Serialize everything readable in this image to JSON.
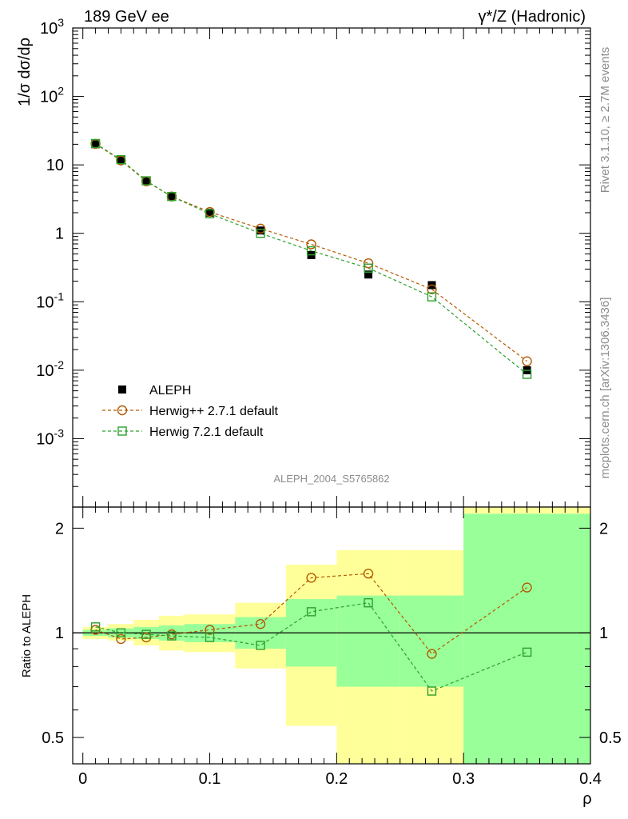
{
  "header": {
    "left_label": "189 GeV ee",
    "right_label": "γ*/Z (Hadronic)",
    "side_label_top": "Rivet 3.1.10, ≥ 2.7M events",
    "side_label_bottom": "mcplots.cern.ch [arXiv:1306.3436]",
    "analysis_id": "ALEPH_2004_S5765862"
  },
  "chart_data": [
    {
      "type": "scatter",
      "panel": "main",
      "ylabel": "1/σ dσ/dρ",
      "yscale": "log",
      "ylim": [
        0.0001,
        1000
      ],
      "xlim": [
        -0.008,
        0.4
      ],
      "y_tick_labels": [
        "10^-3",
        "10^-2",
        "10^-1",
        "1",
        "10",
        "10^2",
        "10^3"
      ],
      "legend_position": "lower-left",
      "x": [
        0.01,
        0.03,
        0.05,
        0.07,
        0.1,
        0.14,
        0.18,
        0.225,
        0.275,
        0.35
      ],
      "series": [
        {
          "name": "ALEPH",
          "marker": "filled-square",
          "color": "#000000",
          "values": [
            20.0,
            12.0,
            5.9,
            3.5,
            2.0,
            1.1,
            0.48,
            0.25,
            0.175,
            0.01
          ]
        },
        {
          "name": "Herwig++ 2.7.1 default",
          "marker": "open-circle",
          "color": "#b35a00",
          "values": [
            20.3,
            11.6,
            5.75,
            3.45,
            2.05,
            1.17,
            0.69,
            0.365,
            0.152,
            0.0135
          ]
        },
        {
          "name": "Herwig 7.2.1 default",
          "marker": "open-square",
          "color": "#2ca02c",
          "values": [
            20.5,
            11.9,
            5.85,
            3.45,
            1.93,
            1.0,
            0.555,
            0.31,
            0.118,
            0.0087
          ]
        }
      ]
    },
    {
      "type": "scatter",
      "panel": "ratio",
      "ylabel": "Ratio to ALEPH",
      "xlabel": "ρ",
      "ylim": [
        0.42,
        2.3
      ],
      "xlim": [
        -0.008,
        0.4
      ],
      "x_tick_labels": [
        "0",
        "0.1",
        "0.2",
        "0.3",
        "0.4"
      ],
      "y_tick_labels": [
        "0.5",
        "1",
        "2"
      ],
      "reference_line": 1,
      "bin_edges": [
        0.0,
        0.02,
        0.04,
        0.06,
        0.08,
        0.12,
        0.16,
        0.2,
        0.25,
        0.3,
        0.4
      ],
      "band_inner": [
        [
          0.98,
          1.02
        ],
        [
          0.97,
          1.03
        ],
        [
          0.96,
          1.04
        ],
        [
          0.95,
          1.05
        ],
        [
          0.94,
          1.06
        ],
        [
          0.9,
          1.11
        ],
        [
          0.8,
          1.25
        ],
        [
          0.7,
          1.28
        ],
        [
          0.7,
          1.28
        ],
        [
          0.35,
          2.2
        ]
      ],
      "band_outer": [
        [
          0.96,
          1.04
        ],
        [
          0.95,
          1.06
        ],
        [
          0.92,
          1.09
        ],
        [
          0.89,
          1.12
        ],
        [
          0.88,
          1.13
        ],
        [
          0.79,
          1.22
        ],
        [
          0.54,
          1.57
        ],
        [
          0.35,
          1.73
        ],
        [
          0.35,
          1.73
        ],
        [
          0.35,
          2.3
        ]
      ],
      "band_colors": {
        "inner": "#99ff99",
        "outer": "#ffff99"
      },
      "x": [
        0.01,
        0.03,
        0.05,
        0.07,
        0.1,
        0.14,
        0.18,
        0.225,
        0.275,
        0.35
      ],
      "series": [
        {
          "name": "Herwig++ 2.7.1 default",
          "marker": "open-circle",
          "color": "#b35a00",
          "values": [
            1.02,
            0.96,
            0.97,
            0.99,
            1.02,
            1.06,
            1.44,
            1.48,
            0.87,
            1.35
          ]
        },
        {
          "name": "Herwig 7.2.1 default",
          "marker": "open-square",
          "color": "#2ca02c",
          "values": [
            1.04,
            1.0,
            0.99,
            0.98,
            0.97,
            0.92,
            1.15,
            1.22,
            0.68,
            0.88
          ]
        }
      ]
    }
  ]
}
